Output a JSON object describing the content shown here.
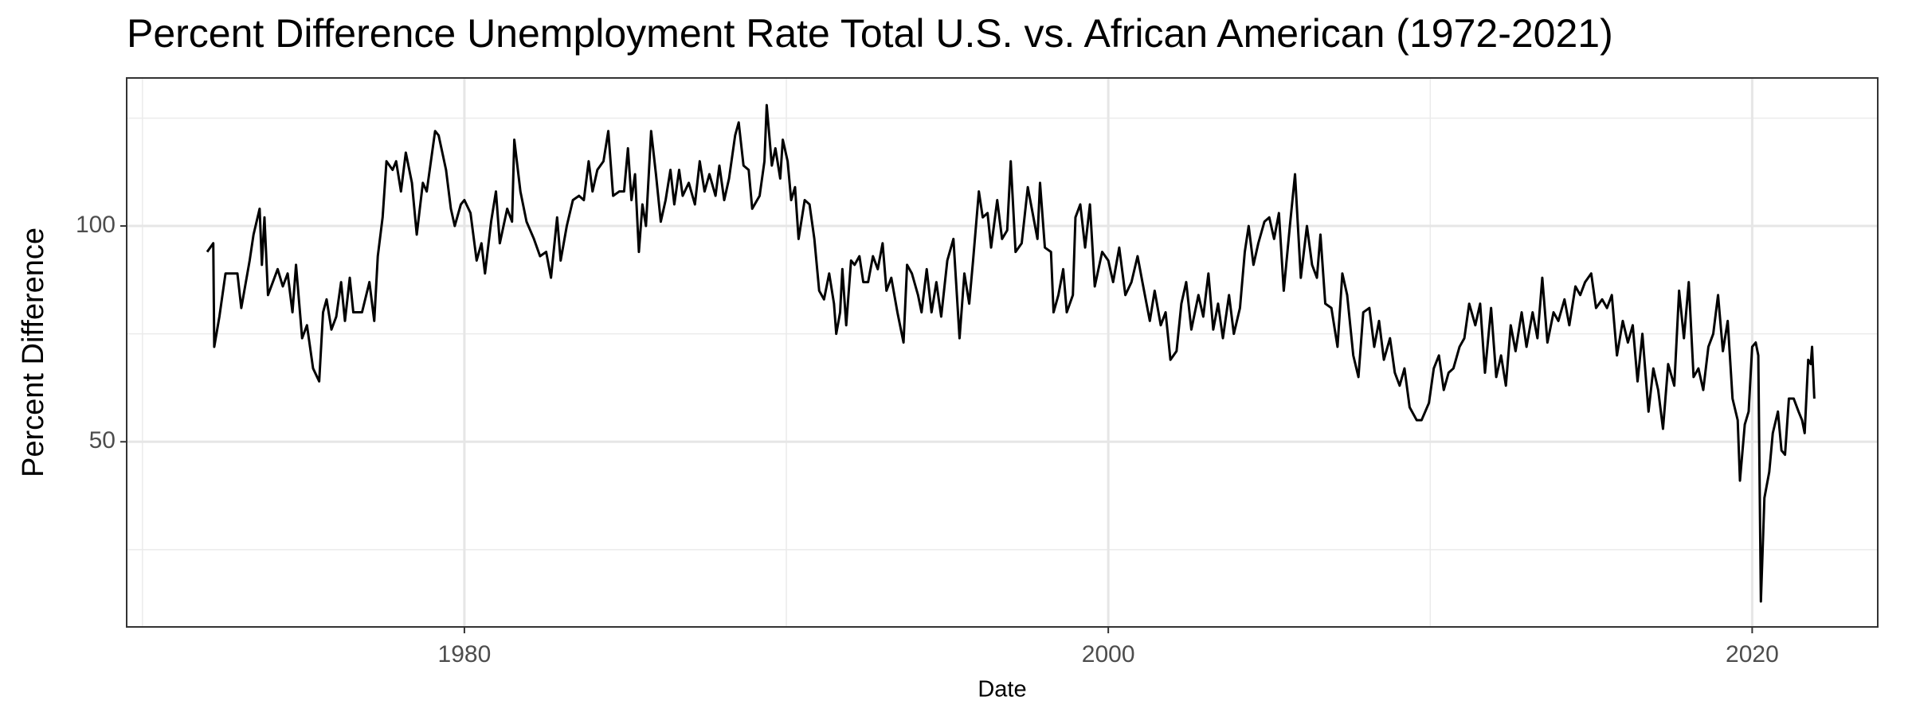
{
  "chart_data": {
    "type": "line",
    "title": "Percent Difference Unemployment Rate Total U.S. vs. African American (1972-2021)",
    "x_label": "Date",
    "y_label": "Percent Difference",
    "color": "#000000",
    "grid": true,
    "xlim": [
      1969.51,
      2023.9
    ],
    "ylim": [
      7.1,
      134.3
    ],
    "xticks": [
      1980,
      2000,
      2020
    ],
    "yticks": [
      50,
      100
    ],
    "minor_xticks": [
      1970,
      1990,
      2010
    ],
    "minor_yticks": [
      25,
      75,
      125
    ],
    "x": [
      1972.01,
      1972.2,
      1972.23,
      1972.39,
      1972.58,
      1972.95,
      1973.07,
      1973.33,
      1973.45,
      1973.64,
      1973.71,
      1973.79,
      1973.9,
      1974.2,
      1974.36,
      1974.51,
      1974.66,
      1974.77,
      1974.96,
      1975.11,
      1975.3,
      1975.49,
      1975.61,
      1975.72,
      1975.87,
      1976.02,
      1976.17,
      1976.29,
      1976.44,
      1976.55,
      1976.82,
      1977.05,
      1977.2,
      1977.31,
      1977.46,
      1977.58,
      1977.77,
      1977.88,
      1978.03,
      1978.18,
      1978.37,
      1978.52,
      1978.71,
      1978.83,
      1979.09,
      1979.2,
      1979.43,
      1979.58,
      1979.7,
      1979.89,
      1980.0,
      1980.19,
      1980.38,
      1980.53,
      1980.64,
      1980.83,
      1980.98,
      1981.1,
      1981.33,
      1981.48,
      1981.55,
      1981.74,
      1981.93,
      1982.16,
      1982.35,
      1982.54,
      1982.69,
      1982.88,
      1982.99,
      1983.18,
      1983.37,
      1983.56,
      1983.71,
      1983.86,
      1983.98,
      1984.13,
      1984.32,
      1984.47,
      1984.62,
      1984.81,
      1984.96,
      1985.08,
      1985.19,
      1985.3,
      1985.42,
      1985.53,
      1985.64,
      1985.8,
      1985.95,
      1986.1,
      1986.25,
      1986.4,
      1986.52,
      1986.67,
      1986.78,
      1986.97,
      1987.16,
      1987.31,
      1987.46,
      1987.61,
      1987.8,
      1987.92,
      1988.07,
      1988.22,
      1988.41,
      1988.52,
      1988.67,
      1988.83,
      1988.94,
      1989.17,
      1989.32,
      1989.39,
      1989.55,
      1989.66,
      1989.81,
      1989.89,
      1990.04,
      1990.15,
      1990.27,
      1990.38,
      1990.57,
      1990.72,
      1990.87,
      1991.02,
      1991.17,
      1991.33,
      1991.48,
      1991.55,
      1991.67,
      1991.74,
      1991.86,
      1992.01,
      1992.12,
      1992.27,
      1992.39,
      1992.54,
      1992.69,
      1992.84,
      1992.99,
      1993.11,
      1993.26,
      1993.45,
      1993.64,
      1993.75,
      1993.9,
      1994.09,
      1994.2,
      1994.36,
      1994.51,
      1994.66,
      1994.81,
      1995.0,
      1995.19,
      1995.38,
      1995.53,
      1995.68,
      1995.8,
      1995.98,
      1996.1,
      1996.25,
      1996.36,
      1996.55,
      1996.7,
      1996.86,
      1996.97,
      1997.12,
      1997.31,
      1997.5,
      1997.65,
      1997.8,
      1997.88,
      1998.03,
      1998.22,
      1998.3,
      1998.45,
      1998.6,
      1998.71,
      1998.9,
      1998.98,
      1999.13,
      1999.28,
      1999.43,
      1999.58,
      1999.81,
      2000.0,
      2000.15,
      2000.34,
      2000.53,
      2000.72,
      2000.91,
      2001.06,
      2001.29,
      2001.44,
      2001.63,
      2001.78,
      2001.93,
      2002.12,
      2002.27,
      2002.42,
      2002.58,
      2002.8,
      2002.95,
      2003.11,
      2003.26,
      2003.41,
      2003.56,
      2003.75,
      2003.9,
      2004.09,
      2004.24,
      2004.36,
      2004.51,
      2004.66,
      2004.85,
      2005.0,
      2005.15,
      2005.3,
      2005.45,
      2005.64,
      2005.8,
      2005.98,
      2006.17,
      2006.33,
      2006.48,
      2006.59,
      2006.74,
      2006.93,
      2007.12,
      2007.27,
      2007.42,
      2007.61,
      2007.77,
      2007.92,
      2008.11,
      2008.26,
      2008.41,
      2008.56,
      2008.75,
      2008.9,
      2009.05,
      2009.2,
      2009.36,
      2009.58,
      2009.73,
      2009.96,
      2010.11,
      2010.27,
      2010.42,
      2010.57,
      2010.72,
      2010.91,
      2011.06,
      2011.21,
      2011.4,
      2011.55,
      2011.7,
      2011.89,
      2012.05,
      2012.2,
      2012.35,
      2012.5,
      2012.65,
      2012.84,
      2012.99,
      2013.18,
      2013.33,
      2013.48,
      2013.64,
      2013.83,
      2013.98,
      2014.17,
      2014.32,
      2014.51,
      2014.66,
      2014.81,
      2015.0,
      2015.15,
      2015.34,
      2015.49,
      2015.64,
      2015.8,
      2015.98,
      2016.14,
      2016.29,
      2016.44,
      2016.59,
      2016.78,
      2016.93,
      2017.08,
      2017.23,
      2017.39,
      2017.58,
      2017.73,
      2017.88,
      2018.03,
      2018.18,
      2018.33,
      2018.48,
      2018.64,
      2018.79,
      2018.94,
      2019.09,
      2019.24,
      2019.39,
      2019.55,
      2019.62,
      2019.77,
      2019.89,
      2020.0,
      2020.11,
      2020.19,
      2020.27,
      2020.38,
      2020.53,
      2020.64,
      2020.8,
      2020.91,
      2021.02,
      2021.14,
      2021.29,
      2021.44,
      2021.55,
      2021.63,
      2021.74,
      2021.82,
      2021.86,
      2021.93
    ],
    "values": [
      94,
      96,
      72,
      79,
      89,
      89,
      81,
      92,
      98,
      104,
      91,
      102,
      84,
      90,
      86,
      89,
      80,
      91,
      74,
      77,
      67,
      64,
      80,
      83,
      76,
      79,
      87,
      78,
      88,
      80,
      80,
      87,
      78,
      93,
      102,
      115,
      113,
      115,
      108,
      117,
      110,
      98,
      110,
      108,
      122,
      121,
      113,
      104,
      100,
      105,
      106,
      103,
      92,
      96,
      89,
      101,
      108,
      96,
      104,
      101,
      120,
      108,
      101,
      97,
      93,
      94,
      88,
      102,
      92,
      100,
      106,
      107,
      106,
      115,
      108,
      113,
      115,
      122,
      107,
      108,
      108,
      118,
      106,
      112,
      94,
      105,
      100,
      122,
      112,
      101,
      106,
      113,
      105,
      113,
      107,
      110,
      105,
      115,
      108,
      112,
      107,
      114,
      106,
      111,
      121,
      124,
      114,
      113,
      104,
      107,
      115,
      128,
      114,
      118,
      111,
      120,
      115,
      106,
      109,
      97,
      106,
      105,
      97,
      85,
      83,
      89,
      82,
      75,
      80,
      90,
      77,
      92,
      91,
      93,
      87,
      87,
      93,
      90,
      96,
      85,
      88,
      80,
      73,
      91,
      89,
      84,
      80,
      90,
      80,
      87,
      79,
      92,
      97,
      74,
      89,
      82,
      92,
      108,
      102,
      103,
      95,
      106,
      97,
      99,
      115,
      94,
      96,
      109,
      103,
      97,
      110,
      95,
      94,
      80,
      84,
      90,
      80,
      84,
      102,
      105,
      95,
      105,
      86,
      94,
      92,
      87,
      95,
      84,
      87,
      93,
      87,
      78,
      85,
      77,
      80,
      69,
      71,
      82,
      87,
      76,
      84,
      79,
      89,
      76,
      82,
      74,
      84,
      75,
      81,
      94,
      100,
      91,
      96,
      101,
      102,
      97,
      103,
      85,
      100,
      112,
      88,
      100,
      91,
      88,
      98,
      82,
      81,
      72,
      89,
      84,
      70,
      65,
      80,
      81,
      72,
      78,
      69,
      74,
      66,
      63,
      67,
      58,
      55,
      55,
      59,
      67,
      70,
      62,
      66,
      67,
      72,
      74,
      82,
      77,
      82,
      66,
      81,
      65,
      70,
      63,
      77,
      71,
      80,
      72,
      80,
      74,
      88,
      73,
      80,
      78,
      83,
      77,
      86,
      84,
      87,
      89,
      81,
      83,
      81,
      84,
      70,
      78,
      73,
      77,
      64,
      75,
      57,
      67,
      62,
      53,
      68,
      63,
      85,
      74,
      87,
      65,
      67,
      62,
      72,
      75,
      84,
      71,
      78,
      60,
      55,
      41,
      54,
      57,
      72,
      73,
      70,
      13,
      37,
      43,
      52,
      57,
      48,
      47,
      60,
      60,
      57,
      55,
      52,
      69,
      68,
      72,
      60
    ]
  }
}
